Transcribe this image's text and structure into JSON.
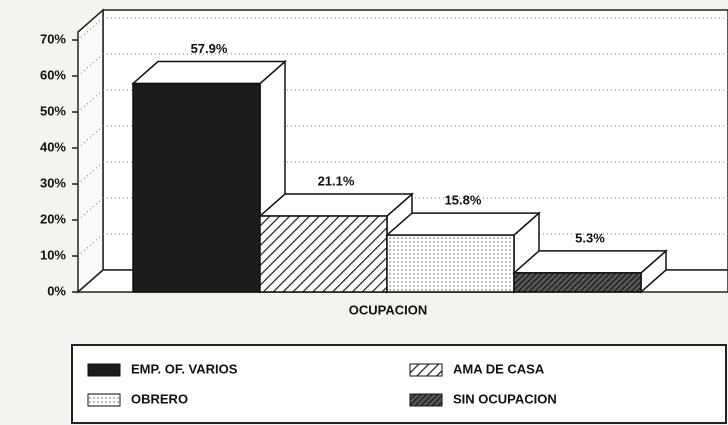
{
  "chart_data": {
    "type": "bar3d",
    "categories": [
      "EMP. OF. VARIOS",
      "AMA DE CASA",
      "OBRERO",
      "SIN OCUPACION"
    ],
    "values": [
      57.9,
      21.1,
      15.8,
      5.3
    ],
    "value_labels": [
      "57.9%",
      "21.1%",
      "15.8%",
      "5.3%"
    ],
    "fills": [
      "solid",
      "hatch",
      "dots",
      "dense-hatch"
    ],
    "x_label": "OCUPACION",
    "ylim": [
      0,
      70
    ],
    "yticks": [
      {
        "value": 0,
        "label": "0%"
      },
      {
        "value": 10,
        "label": "10%"
      },
      {
        "value": 20,
        "label": "20%"
      },
      {
        "value": 30,
        "label": "30%"
      },
      {
        "value": 40,
        "label": "40%"
      },
      {
        "value": 50,
        "label": "50%"
      },
      {
        "value": 60,
        "label": "60%"
      },
      {
        "value": 70,
        "label": "70%"
      }
    ],
    "grid": true,
    "legend": "bottom"
  }
}
